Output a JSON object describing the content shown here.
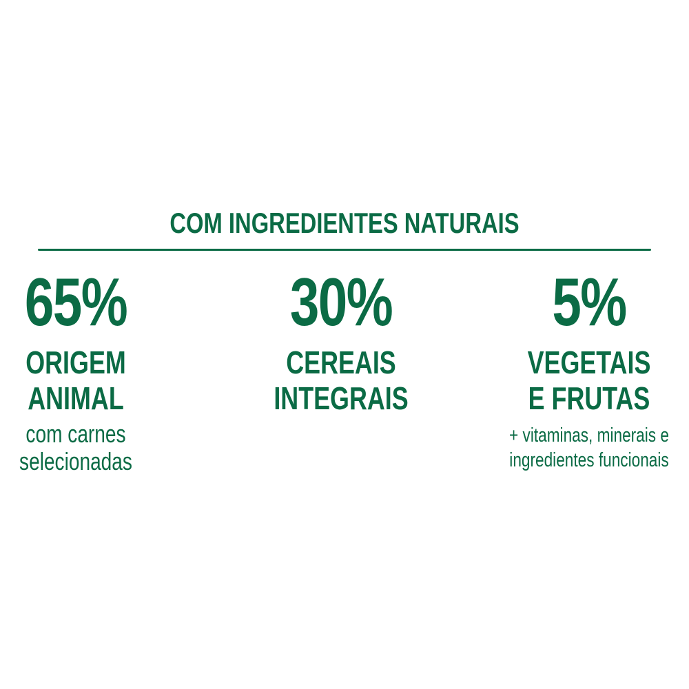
{
  "title": "COM INGREDIENTES NATURAIS",
  "brand_color": "#0b6b45",
  "columns": [
    {
      "percent": "65%",
      "label_lines": [
        "ORIGEM",
        "ANIMAL"
      ],
      "sub_lines": [
        "com carnes",
        "selecionadas"
      ]
    },
    {
      "percent": "30%",
      "label_lines": [
        "CEREAIS",
        "INTEGRAIS"
      ],
      "sub_lines": []
    },
    {
      "percent": "5%",
      "label_lines": [
        "VEGETAIS",
        "E FRUTAS"
      ],
      "sub_lines": [
        "+ vitaminas, minerais e",
        "ingredientes funcionais"
      ]
    }
  ]
}
